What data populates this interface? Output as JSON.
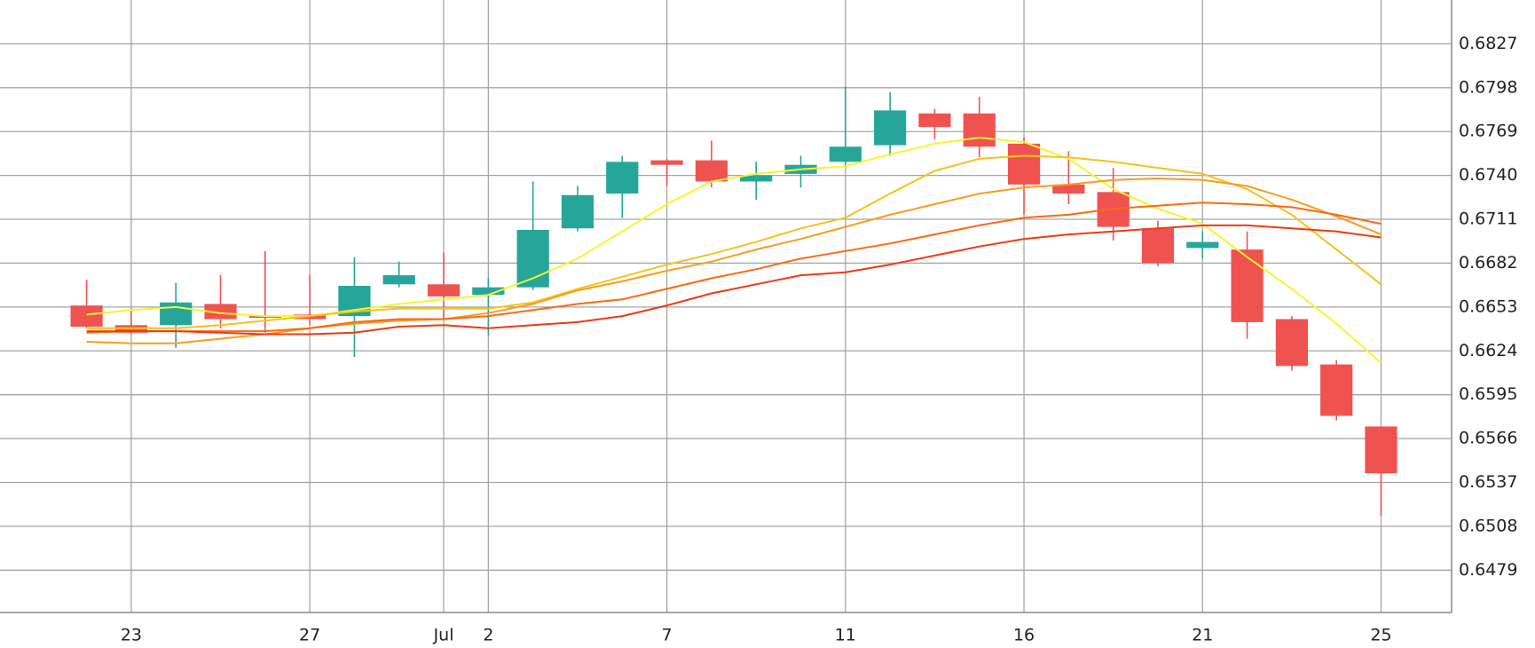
{
  "chart_data": {
    "type": "candlestick",
    "categories": [
      null,
      "23",
      null,
      null,
      null,
      "27",
      null,
      null,
      "Jul",
      "2",
      null,
      null,
      null,
      "7",
      null,
      null,
      null,
      "11",
      null,
      null,
      null,
      "16",
      null,
      null,
      null,
      "21",
      null,
      null,
      null,
      "25"
    ],
    "open": [
      0.6654,
      0.6641,
      0.6641,
      0.6655,
      0.6647,
      0.6648,
      0.6647,
      0.6668,
      0.6668,
      0.6661,
      0.6666,
      0.6705,
      0.6728,
      0.675,
      0.675,
      0.6736,
      0.6741,
      0.6749,
      0.676,
      0.6781,
      0.6781,
      0.6761,
      0.6734,
      0.6729,
      0.6705,
      0.6692,
      0.6691,
      0.6645,
      0.6615,
      0.6574
    ],
    "high": [
      0.6671,
      0.6652,
      0.6669,
      0.6674,
      0.669,
      0.6674,
      0.6686,
      0.6683,
      0.6689,
      0.6672,
      0.6736,
      0.6733,
      0.6753,
      0.6751,
      0.6763,
      0.6749,
      0.6753,
      0.6799,
      0.6795,
      0.6784,
      0.6792,
      0.6765,
      0.6756,
      0.6745,
      0.671,
      0.6703,
      0.6703,
      0.6647,
      0.6618,
      0.6574
    ],
    "low": [
      0.6639,
      0.6635,
      0.6626,
      0.6639,
      0.6636,
      0.6641,
      0.662,
      0.6666,
      0.6645,
      0.6634,
      0.6664,
      0.6703,
      0.6712,
      0.6733,
      0.6732,
      0.6724,
      0.6732,
      0.6746,
      0.6753,
      0.6764,
      0.6752,
      0.6714,
      0.6721,
      0.6697,
      0.668,
      0.6685,
      0.6632,
      0.6611,
      0.6578,
      0.6515
    ],
    "close": [
      0.664,
      0.6636,
      0.6656,
      0.6645,
      0.6646,
      0.6645,
      0.6667,
      0.6674,
      0.666,
      0.6666,
      0.6704,
      0.6727,
      0.6749,
      0.6747,
      0.6736,
      0.674,
      0.6747,
      0.6759,
      0.6783,
      0.6772,
      0.6759,
      0.6734,
      0.6728,
      0.6706,
      0.6682,
      0.6696,
      0.6643,
      0.6614,
      0.6581,
      0.6543
    ],
    "up_color": "#26a69a",
    "down_color": "#ef5350",
    "lines": [
      {
        "color": "#f7f52c",
        "values": [
          0.6648,
          0.6651,
          0.6653,
          0.6649,
          0.6647,
          0.6647,
          0.6651,
          0.6655,
          0.6658,
          0.6661,
          0.6672,
          0.6685,
          0.6703,
          0.6721,
          0.6736,
          0.6741,
          0.6744,
          0.6746,
          0.6754,
          0.6761,
          0.6765,
          0.6762,
          0.6751,
          0.6731,
          0.6718,
          0.6708,
          0.6686,
          0.6665,
          0.6642,
          0.6616
        ]
      },
      {
        "color": "#f6c21e",
        "values": [
          0.6639,
          0.6639,
          0.6639,
          0.6641,
          0.6644,
          0.6647,
          0.665,
          0.6652,
          0.6652,
          0.6652,
          0.6656,
          0.6665,
          0.6673,
          0.6681,
          0.6688,
          0.6696,
          0.6705,
          0.6712,
          0.6728,
          0.6743,
          0.6751,
          0.6753,
          0.6752,
          0.6749,
          0.6745,
          0.6741,
          0.6731,
          0.6714,
          0.6691,
          0.6668
        ]
      },
      {
        "color": "#fb9c1c",
        "values": [
          0.663,
          0.6629,
          0.6629,
          0.6632,
          0.6635,
          0.6639,
          0.6642,
          0.6644,
          0.6645,
          0.6649,
          0.6655,
          0.6664,
          0.667,
          0.6677,
          0.6683,
          0.6691,
          0.6698,
          0.6706,
          0.6714,
          0.6721,
          0.6728,
          0.6732,
          0.6734,
          0.6737,
          0.6738,
          0.6737,
          0.6733,
          0.6724,
          0.6713,
          0.6701
        ]
      },
      {
        "color": "#fa6a12",
        "values": [
          0.6636,
          0.6637,
          0.6637,
          0.6637,
          0.6637,
          0.6639,
          0.6643,
          0.6645,
          0.6645,
          0.6647,
          0.6651,
          0.6655,
          0.6658,
          0.6665,
          0.6672,
          0.6678,
          0.6685,
          0.669,
          0.6695,
          0.6701,
          0.6707,
          0.6712,
          0.6714,
          0.6718,
          0.672,
          0.6722,
          0.6721,
          0.6719,
          0.6714,
          0.6708
        ]
      },
      {
        "color": "#ee3a12",
        "values": [
          0.6637,
          0.6637,
          0.6637,
          0.6636,
          0.6635,
          0.6635,
          0.6636,
          0.664,
          0.6641,
          0.6639,
          0.6641,
          0.6643,
          0.6647,
          0.6654,
          0.6662,
          0.6668,
          0.6674,
          0.6676,
          0.6681,
          0.6687,
          0.6693,
          0.6698,
          0.6701,
          0.6703,
          0.6705,
          0.6707,
          0.6707,
          0.6705,
          0.6703,
          0.6699
        ]
      }
    ],
    "ylim": [
      0.6451,
      0.6856
    ],
    "yticks": [
      0.6827,
      0.6798,
      0.6769,
      {
        "value": 0.674,
        "label": "0.6740"
      },
      0.6711,
      0.6682,
      0.6653,
      0.6624,
      0.6595,
      0.6566,
      0.6537,
      0.6508,
      0.6479
    ],
    "grid": true
  }
}
